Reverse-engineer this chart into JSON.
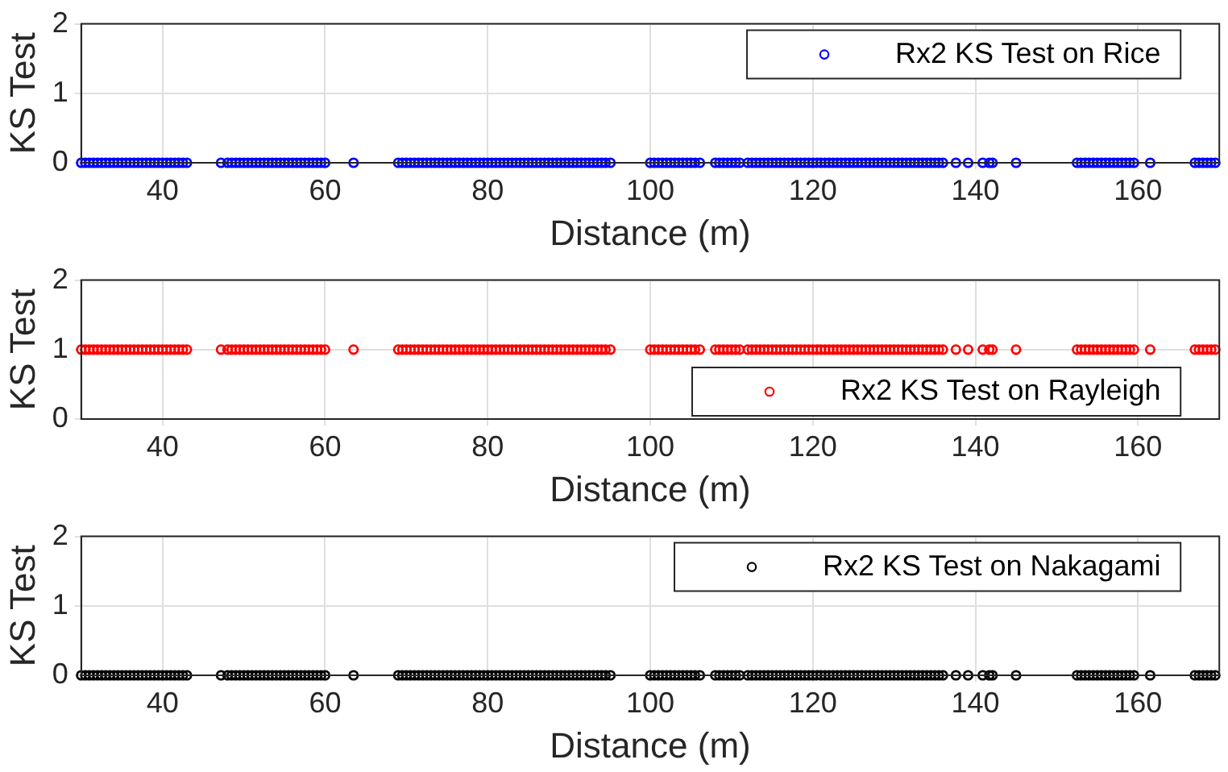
{
  "chart_data": [
    {
      "type": "scatter",
      "xlabel": "Distance (m)",
      "ylabel": "KS Test",
      "xlim": [
        30,
        170
      ],
      "xticks": [
        40,
        60,
        80,
        100,
        120,
        140,
        160
      ],
      "ylim": [
        0,
        2
      ],
      "yticks": [
        0,
        1,
        2
      ],
      "grid": true,
      "legend": "top right",
      "marker": "circle",
      "series": [
        {
          "name": "Rx2 KS Test on Rice",
          "color": "#0000ff",
          "x": [
            30,
            30.5,
            31,
            31.5,
            32,
            32.5,
            33,
            33.5,
            34,
            34.5,
            35,
            35.5,
            36,
            36.5,
            37,
            37.5,
            38,
            38.5,
            39,
            39.5,
            40,
            40.5,
            41,
            41.5,
            42,
            42.5,
            43,
            47.2,
            48,
            48.5,
            49,
            49.5,
            50,
            50.5,
            51,
            51.5,
            52,
            52.5,
            53,
            53.5,
            54,
            54.5,
            55,
            55.5,
            56,
            56.5,
            57,
            57.5,
            58,
            58.5,
            59,
            59.5,
            60,
            63.5,
            69,
            69.5,
            70,
            70.5,
            71,
            71.5,
            72,
            72.5,
            73,
            73.5,
            74,
            74.5,
            75,
            75.5,
            76,
            76.5,
            77,
            77.5,
            78,
            78.5,
            79,
            79.5,
            80,
            80.5,
            81,
            81.5,
            82,
            82.5,
            83,
            83.5,
            84,
            84.5,
            85,
            85.5,
            86,
            86.5,
            87,
            87.5,
            88,
            88.5,
            89,
            89.5,
            90,
            90.5,
            91,
            91.5,
            92,
            92.5,
            93,
            93.5,
            94,
            94.5,
            95.1,
            100,
            100.5,
            101,
            101.5,
            102,
            102.5,
            103,
            103.5,
            104,
            104.5,
            105,
            105.5,
            106.1,
            108,
            108.5,
            109,
            109.5,
            110,
            110.5,
            111,
            112,
            112.5,
            113,
            113.5,
            114,
            114.5,
            115,
            115.5,
            116,
            116.5,
            117,
            117.5,
            118,
            118.5,
            119,
            119.5,
            120,
            120.5,
            121,
            121.5,
            122,
            122.5,
            123,
            123.5,
            124,
            124.5,
            125,
            125.5,
            126,
            126.5,
            127,
            127.5,
            128,
            128.5,
            129,
            129.5,
            130,
            130.5,
            131,
            131.5,
            132,
            132.5,
            133,
            133.5,
            134,
            134.5,
            135,
            135.5,
            136,
            137.6,
            139.1,
            140.9,
            141.7,
            142.1,
            145,
            152.5,
            153,
            153.5,
            154,
            154.5,
            155,
            155.5,
            156,
            156.5,
            157,
            157.5,
            158,
            158.5,
            159,
            159.5,
            161.5,
            167,
            167.5,
            168,
            168.5,
            169,
            169.5
          ],
          "values": [
            0,
            0,
            0,
            0,
            0,
            0,
            0,
            0,
            0,
            0,
            0,
            0,
            0,
            0,
            0,
            0,
            0,
            0,
            0,
            0,
            0,
            0,
            0,
            0,
            0,
            0,
            0,
            0,
            0,
            0,
            0,
            0,
            0,
            0,
            0,
            0,
            0,
            0,
            0,
            0,
            0,
            0,
            0,
            0,
            0,
            0,
            0,
            0,
            0,
            0,
            0,
            0,
            0,
            0,
            0,
            0,
            0,
            0,
            0,
            0,
            0,
            0,
            0,
            0,
            0,
            0,
            0,
            0,
            0,
            0,
            0,
            0,
            0,
            0,
            0,
            0,
            0,
            0,
            0,
            0,
            0,
            0,
            0,
            0,
            0,
            0,
            0,
            0,
            0,
            0,
            0,
            0,
            0,
            0,
            0,
            0,
            0,
            0,
            0,
            0,
            0,
            0,
            0,
            0,
            0,
            0,
            0,
            0,
            0,
            0,
            0,
            0,
            0,
            0,
            0,
            0,
            0,
            0,
            0,
            0,
            0,
            0,
            0,
            0,
            0,
            0,
            0,
            0,
            0,
            0,
            0,
            0,
            0,
            0,
            0,
            0,
            0,
            0,
            0,
            0,
            0,
            0,
            0,
            0,
            0,
            0,
            0,
            0,
            0,
            0,
            0,
            0,
            0,
            0,
            0,
            0,
            0,
            0,
            0,
            0,
            0,
            0,
            0,
            0,
            0,
            0,
            0,
            0,
            0,
            0,
            0,
            0,
            0,
            0,
            0,
            0,
            0,
            0,
            0,
            0,
            0,
            0,
            0,
            0,
            0,
            0,
            0,
            0,
            0,
            0,
            0,
            0,
            0,
            0,
            0,
            0,
            0,
            0,
            0,
            0,
            0,
            0,
            0,
            0
          ]
        }
      ]
    },
    {
      "type": "scatter",
      "xlabel": "Distance (m)",
      "ylabel": "KS Test",
      "xlim": [
        30,
        170
      ],
      "xticks": [
        40,
        60,
        80,
        100,
        120,
        140,
        160
      ],
      "ylim": [
        0,
        2
      ],
      "yticks": [
        0,
        1,
        2
      ],
      "grid": true,
      "legend": "bottom right",
      "marker": "circle",
      "series": [
        {
          "name": "Rx2 KS Test on Rayleigh",
          "color": "#ff0000",
          "x": [
            30,
            30.5,
            31,
            31.5,
            32,
            32.5,
            33,
            33.5,
            34,
            34.5,
            35,
            35.5,
            36,
            36.5,
            37,
            37.5,
            38,
            38.5,
            39,
            39.5,
            40,
            40.5,
            41,
            41.5,
            42,
            42.5,
            43,
            47.2,
            48,
            48.5,
            49,
            49.5,
            50,
            50.5,
            51,
            51.5,
            52,
            52.5,
            53,
            53.5,
            54,
            54.5,
            55,
            55.5,
            56,
            56.5,
            57,
            57.5,
            58,
            58.5,
            59,
            59.5,
            60,
            63.5,
            69,
            69.5,
            70,
            70.5,
            71,
            71.5,
            72,
            72.5,
            73,
            73.5,
            74,
            74.5,
            75,
            75.5,
            76,
            76.5,
            77,
            77.5,
            78,
            78.5,
            79,
            79.5,
            80,
            80.5,
            81,
            81.5,
            82,
            82.5,
            83,
            83.5,
            84,
            84.5,
            85,
            85.5,
            86,
            86.5,
            87,
            87.5,
            88,
            88.5,
            89,
            89.5,
            90,
            90.5,
            91,
            91.5,
            92,
            92.5,
            93,
            93.5,
            94,
            94.5,
            95.1,
            100,
            100.5,
            101,
            101.5,
            102,
            102.5,
            103,
            103.5,
            104,
            104.5,
            105,
            105.5,
            106.1,
            108,
            108.5,
            109,
            109.5,
            110,
            110.5,
            111,
            112,
            112.5,
            113,
            113.5,
            114,
            114.5,
            115,
            115.5,
            116,
            116.5,
            117,
            117.5,
            118,
            118.5,
            119,
            119.5,
            120,
            120.5,
            121,
            121.5,
            122,
            122.5,
            123,
            123.5,
            124,
            124.5,
            125,
            125.5,
            126,
            126.5,
            127,
            127.5,
            128,
            128.5,
            129,
            129.5,
            130,
            130.5,
            131,
            131.5,
            132,
            132.5,
            133,
            133.5,
            134,
            134.5,
            135,
            135.5,
            136,
            137.6,
            139.1,
            140.9,
            141.7,
            142.1,
            145,
            152.5,
            153,
            153.5,
            154,
            154.5,
            155,
            155.5,
            156,
            156.5,
            157,
            157.5,
            158,
            158.5,
            159,
            159.5,
            161.5,
            167,
            167.5,
            168,
            168.5,
            169,
            169.5
          ],
          "values": [
            1,
            1,
            1,
            1,
            1,
            1,
            1,
            1,
            1,
            1,
            1,
            1,
            1,
            1,
            1,
            1,
            1,
            1,
            1,
            1,
            1,
            1,
            1,
            1,
            1,
            1,
            1,
            1,
            1,
            1,
            1,
            1,
            1,
            1,
            1,
            1,
            1,
            1,
            1,
            1,
            1,
            1,
            1,
            1,
            1,
            1,
            1,
            1,
            1,
            1,
            1,
            1,
            1,
            1,
            1,
            1,
            1,
            1,
            1,
            1,
            1,
            1,
            1,
            1,
            1,
            1,
            1,
            1,
            1,
            1,
            1,
            1,
            1,
            1,
            1,
            1,
            1,
            1,
            1,
            1,
            1,
            1,
            1,
            1,
            1,
            1,
            1,
            1,
            1,
            1,
            1,
            1,
            1,
            1,
            1,
            1,
            1,
            1,
            1,
            1,
            1,
            1,
            1,
            1,
            1,
            1,
            1,
            1,
            1,
            1,
            1,
            1,
            1,
            1,
            1,
            1,
            1,
            1,
            1,
            1,
            1,
            1,
            1,
            1,
            1,
            1,
            1,
            1,
            1,
            1,
            1,
            1,
            1,
            1,
            1,
            1,
            1,
            1,
            1,
            1,
            1,
            1,
            1,
            1,
            1,
            1,
            1,
            1,
            1,
            1,
            1,
            1,
            1,
            1,
            1,
            1,
            1,
            1,
            1,
            1,
            1,
            1,
            1,
            1,
            1,
            1,
            1,
            1,
            1,
            1,
            1,
            1,
            1,
            1,
            1,
            1,
            1,
            1,
            1,
            1,
            1,
            1,
            1,
            1,
            1,
            1,
            1,
            1,
            1,
            1,
            1,
            1,
            1,
            1,
            1,
            1,
            1,
            1,
            1,
            1,
            1,
            1,
            1,
            1
          ]
        }
      ]
    },
    {
      "type": "scatter",
      "xlabel": "Distance (m)",
      "ylabel": "KS Test",
      "xlim": [
        30,
        170
      ],
      "xticks": [
        40,
        60,
        80,
        100,
        120,
        140,
        160
      ],
      "ylim": [
        0,
        2
      ],
      "yticks": [
        0,
        1,
        2
      ],
      "grid": true,
      "legend": "top right",
      "marker": "circle",
      "series": [
        {
          "name": "Rx2 KS Test on Nakagami",
          "color": "#000000",
          "x": [
            30,
            30.5,
            31,
            31.5,
            32,
            32.5,
            33,
            33.5,
            34,
            34.5,
            35,
            35.5,
            36,
            36.5,
            37,
            37.5,
            38,
            38.5,
            39,
            39.5,
            40,
            40.5,
            41,
            41.5,
            42,
            42.5,
            43,
            47.2,
            48,
            48.5,
            49,
            49.5,
            50,
            50.5,
            51,
            51.5,
            52,
            52.5,
            53,
            53.5,
            54,
            54.5,
            55,
            55.5,
            56,
            56.5,
            57,
            57.5,
            58,
            58.5,
            59,
            59.5,
            60,
            63.5,
            69,
            69.5,
            70,
            70.5,
            71,
            71.5,
            72,
            72.5,
            73,
            73.5,
            74,
            74.5,
            75,
            75.5,
            76,
            76.5,
            77,
            77.5,
            78,
            78.5,
            79,
            79.5,
            80,
            80.5,
            81,
            81.5,
            82,
            82.5,
            83,
            83.5,
            84,
            84.5,
            85,
            85.5,
            86,
            86.5,
            87,
            87.5,
            88,
            88.5,
            89,
            89.5,
            90,
            90.5,
            91,
            91.5,
            92,
            92.5,
            93,
            93.5,
            94,
            94.5,
            95.1,
            100,
            100.5,
            101,
            101.5,
            102,
            102.5,
            103,
            103.5,
            104,
            104.5,
            105,
            105.5,
            106.1,
            108,
            108.5,
            109,
            109.5,
            110,
            110.5,
            111,
            112,
            112.5,
            113,
            113.5,
            114,
            114.5,
            115,
            115.5,
            116,
            116.5,
            117,
            117.5,
            118,
            118.5,
            119,
            119.5,
            120,
            120.5,
            121,
            121.5,
            122,
            122.5,
            123,
            123.5,
            124,
            124.5,
            125,
            125.5,
            126,
            126.5,
            127,
            127.5,
            128,
            128.5,
            129,
            129.5,
            130,
            130.5,
            131,
            131.5,
            132,
            132.5,
            133,
            133.5,
            134,
            134.5,
            135,
            135.5,
            136,
            137.6,
            139.1,
            140.9,
            141.7,
            142.1,
            145,
            152.5,
            153,
            153.5,
            154,
            154.5,
            155,
            155.5,
            156,
            156.5,
            157,
            157.5,
            158,
            158.5,
            159,
            159.5,
            161.5,
            167,
            167.5,
            168,
            168.5,
            169,
            169.5
          ],
          "values": [
            0,
            0,
            0,
            0,
            0,
            0,
            0,
            0,
            0,
            0,
            0,
            0,
            0,
            0,
            0,
            0,
            0,
            0,
            0,
            0,
            0,
            0,
            0,
            0,
            0,
            0,
            0,
            0,
            0,
            0,
            0,
            0,
            0,
            0,
            0,
            0,
            0,
            0,
            0,
            0,
            0,
            0,
            0,
            0,
            0,
            0,
            0,
            0,
            0,
            0,
            0,
            0,
            0,
            0,
            0,
            0,
            0,
            0,
            0,
            0,
            0,
            0,
            0,
            0,
            0,
            0,
            0,
            0,
            0,
            0,
            0,
            0,
            0,
            0,
            0,
            0,
            0,
            0,
            0,
            0,
            0,
            0,
            0,
            0,
            0,
            0,
            0,
            0,
            0,
            0,
            0,
            0,
            0,
            0,
            0,
            0,
            0,
            0,
            0,
            0,
            0,
            0,
            0,
            0,
            0,
            0,
            0,
            0,
            0,
            0,
            0,
            0,
            0,
            0,
            0,
            0,
            0,
            0,
            0,
            0,
            0,
            0,
            0,
            0,
            0,
            0,
            0,
            0,
            0,
            0,
            0,
            0,
            0,
            0,
            0,
            0,
            0,
            0,
            0,
            0,
            0,
            0,
            0,
            0,
            0,
            0,
            0,
            0,
            0,
            0,
            0,
            0,
            0,
            0,
            0,
            0,
            0,
            0,
            0,
            0,
            0,
            0,
            0,
            0,
            0,
            0,
            0,
            0,
            0,
            0,
            0,
            0,
            0,
            0,
            0,
            0,
            0,
            0,
            0,
            0,
            0,
            0,
            0,
            0,
            0,
            0,
            0,
            0,
            0,
            0,
            0,
            0,
            0,
            0,
            0,
            0,
            0,
            0,
            0,
            0,
            0,
            0,
            0,
            0
          ]
        }
      ]
    }
  ]
}
